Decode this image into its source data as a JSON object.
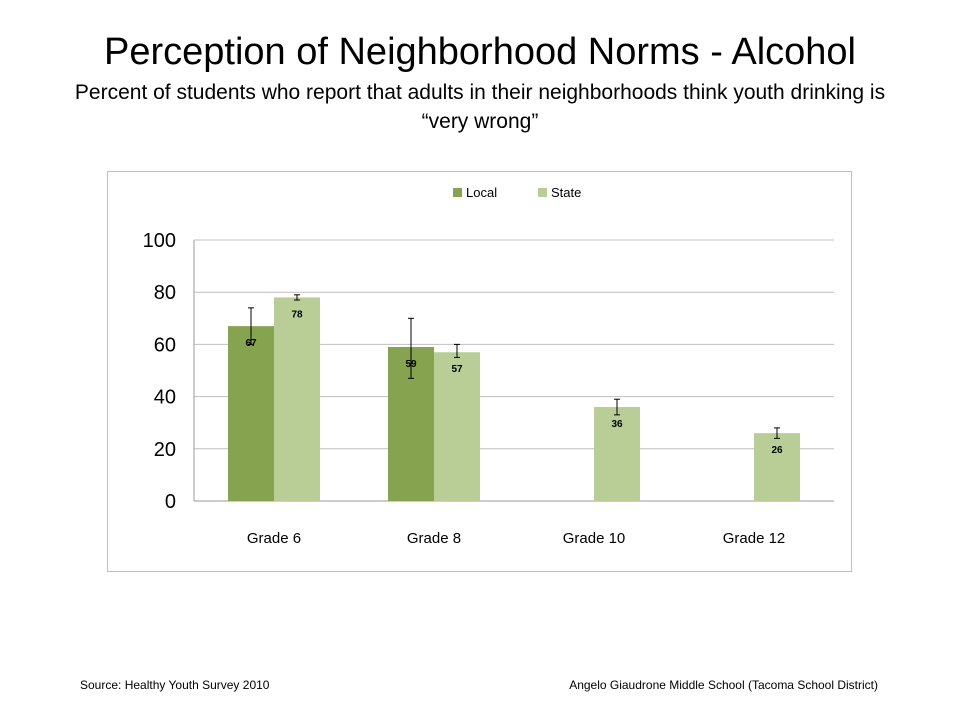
{
  "title": "Perception of Neighborhood Norms - Alcohol",
  "subtitle": "Percent of students who report that adults in their neighborhoods think youth drinking is “very wrong”",
  "footer": {
    "source": "Source: Healthy Youth Survey 2010",
    "school": "Angelo Giaudrone Middle School (Tacoma School District)"
  },
  "chart_data": {
    "type": "bar",
    "categories": [
      "Grade 6",
      "Grade 8",
      "Grade 10",
      "Grade 12"
    ],
    "series": [
      {
        "name": "Local",
        "color": "#86a34f",
        "values": [
          67,
          59,
          null,
          null
        ],
        "error_bars": [
          [
            60,
            74
          ],
          [
            47,
            70
          ],
          null,
          null
        ]
      },
      {
        "name": "State",
        "color": "#b8ce96",
        "values": [
          78,
          57,
          36,
          26
        ],
        "error_bars": [
          [
            77,
            79
          ],
          [
            55,
            60
          ],
          [
            33,
            39
          ],
          [
            24,
            28
          ]
        ]
      }
    ],
    "ylim": [
      0,
      100
    ],
    "yticks": [
      0,
      20,
      40,
      60,
      80,
      100
    ],
    "grid": true,
    "legend_position": "top-center",
    "data_labels": true
  }
}
